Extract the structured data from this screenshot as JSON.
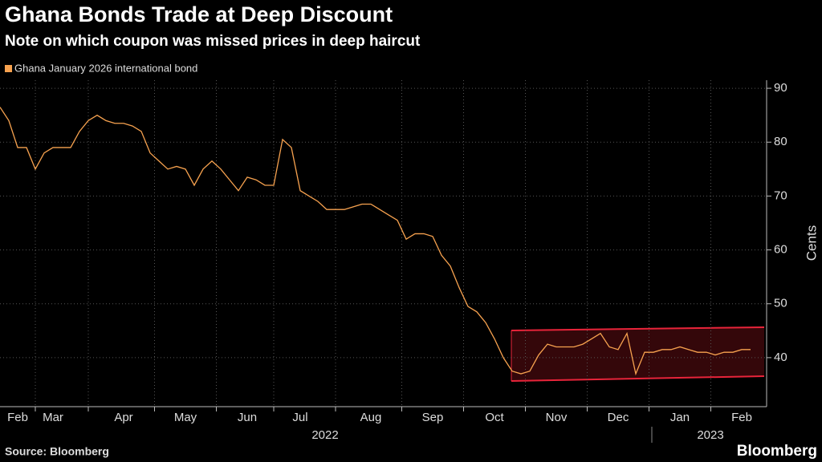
{
  "chart_data": {
    "type": "line",
    "title": "Ghana Bonds Trade at Deep Discount",
    "subtitle": "Note on which coupon was missed prices in deep haircut",
    "y_axis_label": "Cents",
    "source": "Source: Bloomberg",
    "brand": "Bloomberg",
    "years": [
      "2022",
      "2023"
    ],
    "categories": [
      null,
      null,
      "Feb",
      null,
      null,
      null,
      "Mar",
      null,
      null,
      null,
      null,
      null,
      null,
      null,
      "Apr",
      null,
      null,
      null,
      null,
      null,
      null,
      "May",
      null,
      null,
      null,
      null,
      null,
      null,
      "Jun",
      null,
      null,
      null,
      null,
      null,
      "Jul",
      null,
      null,
      null,
      null,
      null,
      null,
      null,
      "Aug",
      null,
      null,
      null,
      null,
      null,
      null,
      "Sep",
      null,
      null,
      null,
      null,
      null,
      null,
      "Oct",
      null,
      null,
      null,
      null,
      null,
      null,
      "Nov",
      null,
      null,
      null,
      null,
      null,
      null,
      "Dec",
      null,
      null,
      null,
      null,
      null,
      null,
      "Jan",
      null,
      null,
      null,
      null,
      null,
      null,
      "Feb",
      null
    ],
    "series": [
      {
        "name": "Ghana January 2026 international bond",
        "color": "#f7a24f",
        "values": [
          86.5,
          84,
          79,
          79,
          75,
          78,
          79,
          79,
          79,
          82,
          84,
          85,
          84,
          83.5,
          83.5,
          83,
          82,
          78,
          76.5,
          75,
          75.5,
          75,
          72,
          75,
          76.5,
          75,
          73,
          71,
          73.5,
          73,
          72,
          72,
          80.5,
          79,
          71,
          70,
          69,
          67.5,
          67.5,
          67.5,
          68,
          68.5,
          68.5,
          67.5,
          66.5,
          65.5,
          62,
          63,
          63,
          62.5,
          59,
          57,
          53,
          49.5,
          48.5,
          46.5,
          43.5,
          40,
          37.5,
          37,
          37.5,
          40.5,
          42.5,
          42,
          42,
          42,
          42.5,
          43.5,
          44.5,
          42,
          41.5,
          44.5,
          37,
          41,
          41,
          41.5,
          41.5,
          42,
          41.5,
          41,
          41,
          40.5,
          41,
          41,
          41.5,
          41.5
        ]
      }
    ],
    "ylim": [
      31.2,
      91.5
    ],
    "yticks": [
      40,
      50,
      60,
      70,
      80,
      90
    ],
    "grid": true
  }
}
